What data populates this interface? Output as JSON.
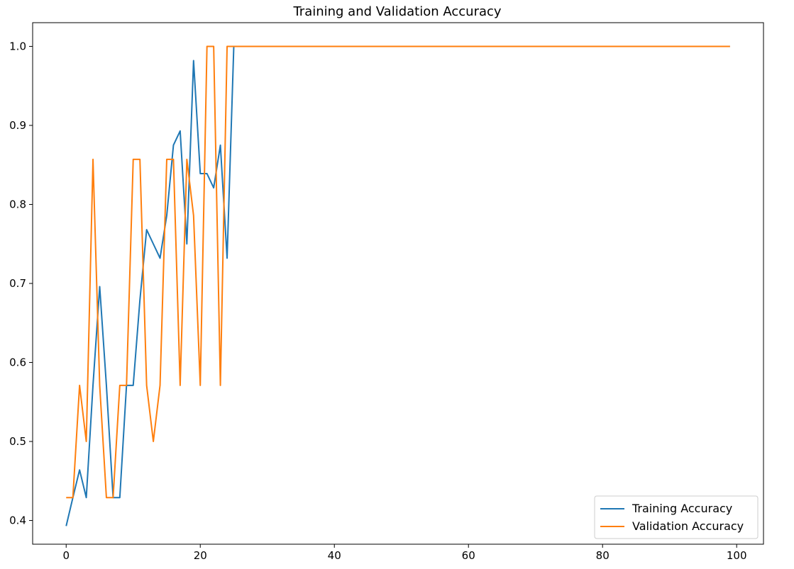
{
  "chart_data": {
    "type": "line",
    "title": "Training and Validation Accuracy",
    "xlabel": "",
    "ylabel": "",
    "xlim": [
      -5,
      104
    ],
    "ylim": [
      0.37,
      1.03
    ],
    "xticks": [
      0,
      20,
      40,
      60,
      80,
      100
    ],
    "yticks": [
      0.4,
      0.5,
      0.6,
      0.7,
      0.8,
      0.9,
      1.0
    ],
    "grid": false,
    "legend_position": "lower-right",
    "series": [
      {
        "name": "Training Accuracy",
        "color": "#1f77b4",
        "x": [
          0,
          1,
          2,
          3,
          4,
          5,
          6,
          7,
          8,
          9,
          10,
          11,
          12,
          13,
          14,
          15,
          16,
          17,
          18,
          19,
          20,
          21,
          22,
          23,
          24,
          25,
          99
        ],
        "y": [
          0.393,
          0.429,
          0.464,
          0.429,
          0.571,
          0.696,
          0.571,
          0.429,
          0.429,
          0.571,
          0.571,
          0.679,
          0.768,
          0.75,
          0.732,
          0.786,
          0.875,
          0.893,
          0.75,
          0.982,
          0.839,
          0.839,
          0.821,
          0.875,
          0.732,
          1.0,
          1.0
        ]
      },
      {
        "name": "Validation Accuracy",
        "color": "#ff7f0e",
        "x": [
          0,
          1,
          2,
          3,
          4,
          5,
          6,
          7,
          8,
          9,
          10,
          11,
          12,
          13,
          14,
          15,
          16,
          17,
          18,
          19,
          20,
          21,
          22,
          23,
          24,
          99
        ],
        "y": [
          0.429,
          0.429,
          0.571,
          0.5,
          0.857,
          0.571,
          0.429,
          0.429,
          0.571,
          0.571,
          0.857,
          0.857,
          0.571,
          0.5,
          0.571,
          0.857,
          0.857,
          0.571,
          0.857,
          0.786,
          0.571,
          1.0,
          1.0,
          0.571,
          1.0,
          1.0
        ]
      }
    ]
  }
}
